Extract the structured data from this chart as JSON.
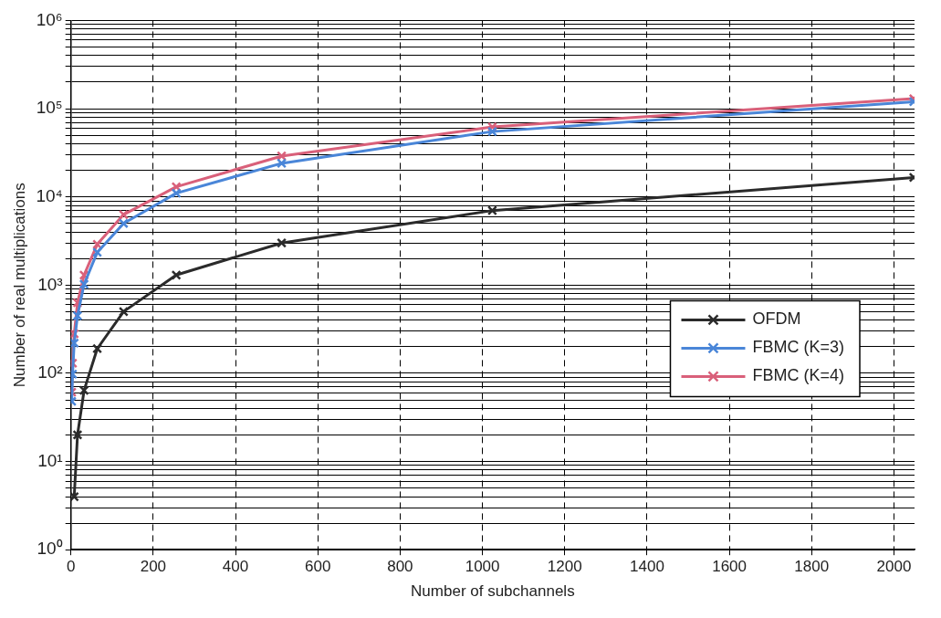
{
  "chart_data": {
    "type": "line",
    "xlabel": "Number of subchannels",
    "ylabel": "Number of real multiplications",
    "xlim": [
      0,
      2050
    ],
    "xticks": [
      0,
      200,
      400,
      600,
      800,
      1000,
      1200,
      1400,
      1600,
      1800,
      2000
    ],
    "ylim": [
      1,
      1000000
    ],
    "yticks": [
      {
        "value": 1,
        "label": "10⁰"
      },
      {
        "value": 2,
        "label": null
      },
      {
        "value": 3,
        "label": null
      },
      {
        "value": 4,
        "label": null
      },
      {
        "value": 5,
        "label": null
      },
      {
        "value": 6,
        "label": null
      },
      {
        "value": 7,
        "label": null
      },
      {
        "value": 8,
        "label": null
      },
      {
        "value": 9,
        "label": null
      },
      {
        "value": 10,
        "label": "10¹"
      },
      {
        "value": 20,
        "label": null
      },
      {
        "value": 30,
        "label": null
      },
      {
        "value": 40,
        "label": null
      },
      {
        "value": 50,
        "label": null
      },
      {
        "value": 60,
        "label": null
      },
      {
        "value": 70,
        "label": null
      },
      {
        "value": 80,
        "label": null
      },
      {
        "value": 90,
        "label": null
      },
      {
        "value": 100,
        "label": "10²"
      },
      {
        "value": 200,
        "label": null
      },
      {
        "value": 300,
        "label": null
      },
      {
        "value": 400,
        "label": null
      },
      {
        "value": 500,
        "label": null
      },
      {
        "value": 600,
        "label": null
      },
      {
        "value": 700,
        "label": null
      },
      {
        "value": 800,
        "label": null
      },
      {
        "value": 900,
        "label": null
      },
      {
        "value": 1000,
        "label": "10³"
      },
      {
        "value": 2000,
        "label": null
      },
      {
        "value": 3000,
        "label": null
      },
      {
        "value": 4000,
        "label": null
      },
      {
        "value": 5000,
        "label": null
      },
      {
        "value": 6000,
        "label": null
      },
      {
        "value": 7000,
        "label": null
      },
      {
        "value": 8000,
        "label": null
      },
      {
        "value": 9000,
        "label": null
      },
      {
        "value": 10000,
        "label": "10⁴"
      },
      {
        "value": 20000,
        "label": null
      },
      {
        "value": 30000,
        "label": null
      },
      {
        "value": 40000,
        "label": null
      },
      {
        "value": 50000,
        "label": null
      },
      {
        "value": 60000,
        "label": null
      },
      {
        "value": 70000,
        "label": null
      },
      {
        "value": 80000,
        "label": null
      },
      {
        "value": 90000,
        "label": null
      },
      {
        "value": 100000,
        "label": "10⁵"
      },
      {
        "value": 200000,
        "label": null
      },
      {
        "value": 300000,
        "label": null
      },
      {
        "value": 400000,
        "label": null
      },
      {
        "value": 500000,
        "label": null
      },
      {
        "value": 600000,
        "label": null
      },
      {
        "value": 700000,
        "label": null
      },
      {
        "value": 800000,
        "label": null
      },
      {
        "value": 900000,
        "label": null
      },
      {
        "value": 1000000,
        "label": "10⁶"
      }
    ],
    "log": "y",
    "grid": true,
    "legend": "right",
    "marker": "cross",
    "line_style": "solid",
    "series": [
      {
        "name": "OFDM",
        "color": "#2b2b2b",
        "x": [
          8,
          16,
          32,
          64,
          128,
          256,
          512,
          1024,
          2048
        ],
        "values": [
          4,
          20,
          64,
          190,
          500,
          1300,
          3000,
          7000,
          16600
        ]
      },
      {
        "name": "FBMC (K=3)",
        "color": "#4a86d8",
        "x": [
          2,
          4,
          8,
          16,
          32,
          64,
          128,
          256,
          512,
          1024,
          2048
        ],
        "values": [
          48,
          98,
          220,
          450,
          1020,
          2350,
          5000,
          11000,
          24000,
          55000,
          120000
        ]
      },
      {
        "name": "FBMC (K=4)",
        "color": "#d9607a",
        "x": [
          2,
          4,
          8,
          16,
          32,
          64,
          128,
          256,
          512,
          1024,
          2048
        ],
        "values": [
          61,
          130,
          280,
          630,
          1300,
          2900,
          6300,
          13000,
          29000,
          62000,
          130000
        ]
      }
    ]
  }
}
